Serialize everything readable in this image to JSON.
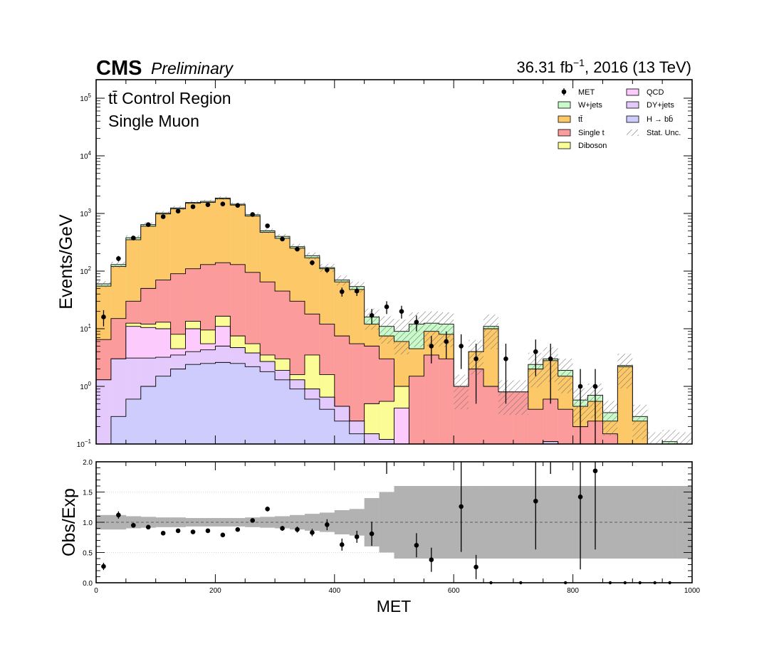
{
  "header": {
    "cms": "CMS",
    "preliminary": "Preliminary",
    "lumi_value": "36.31 fb",
    "lumi_exp": "−1",
    "lumi_rest": ", 2016 (13 TeV)"
  },
  "region": {
    "line1": "tt̄ Control Region",
    "line2": "Single Muon"
  },
  "axes": {
    "top_ylabel": "Events/GeV",
    "bottom_ylabel": "Obs/Exp",
    "xlabel": "MET",
    "x_ticks": [
      "0",
      "200",
      "400",
      "600",
      "800",
      "1000"
    ],
    "top_y_ticks": [
      {
        "base": "10",
        "exp": "−1"
      },
      {
        "base": "10",
        "exp": "0"
      },
      {
        "base": "10",
        "exp": "1"
      },
      {
        "base": "10",
        "exp": "2"
      },
      {
        "base": "10",
        "exp": "3"
      },
      {
        "base": "10",
        "exp": "4"
      },
      {
        "base": "10",
        "exp": "5"
      }
    ],
    "ratio_y_ticks": [
      "0.0",
      "0.5",
      "1.0",
      "1.5",
      "2.0"
    ]
  },
  "legend": {
    "met": "MET",
    "wjets": "W+jets",
    "ttbar": "tt̄",
    "singlet": "Single t",
    "diboson": "Diboson",
    "qcd": "QCD",
    "dyjets": "DY+jets",
    "hbb": "H → bb̄",
    "stat": "Stat. Unc."
  },
  "colors": {
    "hbb": "#cdccfd",
    "dyjets": "#e4cafc",
    "qcd": "#fccafd",
    "diboson": "#fcfc97",
    "singlet": "#fc9b9b",
    "ttbar": "#fdc867",
    "wjets": "#c9fbca",
    "stat_band": "#b2b2b2"
  },
  "chart_data": {
    "type": "histogram-stack-with-ratio",
    "xlim": [
      0,
      1000
    ],
    "ylim": [
      0.1,
      200000
    ],
    "ylog": true,
    "ratio_ylim": [
      0,
      2
    ],
    "bin_width": 25,
    "bin_low_edges": [
      0,
      25,
      50,
      75,
      100,
      125,
      150,
      175,
      200,
      225,
      250,
      275,
      300,
      325,
      350,
      375,
      400,
      425,
      450,
      475,
      500,
      525,
      550,
      575,
      600,
      625,
      650,
      675,
      700,
      725,
      750,
      775,
      800,
      825,
      850,
      875,
      900,
      925,
      950,
      975
    ],
    "stack_cumulative": {
      "hbb": [
        0.1,
        0.3,
        0.6,
        1.0,
        1.5,
        2.0,
        2.4,
        2.5,
        2.6,
        2.5,
        2.2,
        1.8,
        1.3,
        0.9,
        0.6,
        0.4,
        0.25,
        0.15,
        0.1,
        0.1,
        0.1,
        0.1,
        0.1,
        0.1,
        0.1,
        0.1,
        0.1,
        0.1,
        0.1,
        0.1,
        0.1,
        0.1,
        0.1,
        0.1,
        0.1,
        0.1,
        0.1,
        0.1,
        0.1,
        0.1
      ],
      "dyjets": [
        1.3,
        3.0,
        3.1,
        3.1,
        3.2,
        3.5,
        4.0,
        4.3,
        5.0,
        4.7,
        3.8,
        2.7,
        1.9,
        1.3,
        0.9,
        0.65,
        0.45,
        0.25,
        0.15,
        0.12,
        0.1,
        0.1,
        0.1,
        0.1,
        0.1,
        0.1,
        0.1,
        0.1,
        0.1,
        0.1,
        0.11,
        0.1,
        0.1,
        0.1,
        0.1,
        0.1,
        0.1,
        0.1,
        0.1,
        0.1
      ],
      "qcd": [
        1.3,
        3.0,
        11.0,
        10.5,
        10.0,
        4.5,
        10.0,
        5.5,
        11.0,
        4.7,
        3.8,
        2.7,
        1.9,
        1.3,
        0.9,
        0.65,
        0.45,
        0.25,
        0.15,
        0.12,
        0.42,
        0.1,
        0.1,
        0.1,
        0.1,
        0.1,
        0.1,
        0.1,
        0.1,
        0.1,
        0.11,
        0.1,
        0.1,
        0.1,
        0.1,
        0.1,
        0.1,
        0.1,
        0.1,
        0.1
      ],
      "diboson": [
        1.3,
        3.0,
        12.5,
        12.0,
        13.0,
        8.0,
        13.5,
        9.5,
        16.5,
        7.5,
        5.5,
        3.5,
        3.0,
        1.6,
        3.5,
        1.6,
        0.45,
        0.25,
        0.5,
        0.55,
        1.0,
        0.1,
        0.1,
        0.1,
        0.1,
        0.1,
        0.1,
        0.1,
        0.1,
        0.1,
        0.11,
        0.1,
        0.1,
        0.1,
        0.1,
        0.1,
        0.1,
        0.1,
        0.1,
        0.1
      ],
      "singlet": [
        6.5,
        15,
        30,
        50,
        70,
        90,
        110,
        130,
        140,
        130,
        95,
        65,
        45,
        30,
        18,
        12,
        7.5,
        5.5,
        5.0,
        3.0,
        1.0,
        1.5,
        3.5,
        3.0,
        1.0,
        2.0,
        1.0,
        0.8,
        0.8,
        0.4,
        0.6,
        0.4,
        0.2,
        0.25,
        0.15,
        0.1,
        0.1,
        0.1,
        0.1,
        0.1
      ],
      "ttbar": [
        55,
        120,
        350,
        600,
        980,
        1200,
        1500,
        1550,
        1800,
        1400,
        900,
        470,
        370,
        250,
        170,
        110,
        65,
        48,
        12,
        7.5,
        6.0,
        4.5,
        9.0,
        8.0,
        1.0,
        4.0,
        10.0,
        0.8,
        0.8,
        2.0,
        2.8,
        1.5,
        0.45,
        0.55,
        0.25,
        2.2,
        0.25,
        0.1,
        0.1,
        0.1
      ],
      "wjets": [
        60,
        130,
        380,
        640,
        1020,
        1250,
        1550,
        1620,
        1850,
        1450,
        950,
        500,
        400,
        265,
        185,
        115,
        70,
        54,
        16,
        11,
        9.0,
        12,
        12.5,
        12,
        1.0,
        4.0,
        11.0,
        0.8,
        0.8,
        2.4,
        3.0,
        1.9,
        0.58,
        0.7,
        0.35,
        2.3,
        0.3,
        0.1,
        0.11,
        0.1
      ]
    },
    "stat_unc_rel": [
      0.12,
      0.12,
      0.1,
      0.09,
      0.08,
      0.08,
      0.07,
      0.07,
      0.07,
      0.07,
      0.08,
      0.09,
      0.1,
      0.12,
      0.14,
      0.16,
      0.2,
      0.22,
      0.4,
      0.5,
      0.6,
      0.6,
      0.6,
      0.6,
      0.6,
      0.6,
      0.6,
      0.6,
      0.6,
      0.6,
      0.6,
      0.6,
      0.6,
      0.6,
      0.6,
      0.6,
      0.6,
      0.6,
      0.6,
      0.6
    ],
    "data_points": [
      {
        "x": 12.5,
        "y": 16,
        "err": 5
      },
      {
        "x": 37.5,
        "y": 165,
        "err": 18
      },
      {
        "x": 62.5,
        "y": 375,
        "err": 25
      },
      {
        "x": 87.5,
        "y": 640,
        "err": 30
      },
      {
        "x": 112.5,
        "y": 880,
        "err": 35
      },
      {
        "x": 137.5,
        "y": 1100,
        "err": 40
      },
      {
        "x": 162.5,
        "y": 1310,
        "err": 45
      },
      {
        "x": 187.5,
        "y": 1420,
        "err": 45
      },
      {
        "x": 212.5,
        "y": 1460,
        "err": 45
      },
      {
        "x": 237.5,
        "y": 1380,
        "err": 45
      },
      {
        "x": 262.5,
        "y": 960,
        "err": 35
      },
      {
        "x": 287.5,
        "y": 610,
        "err": 30
      },
      {
        "x": 312.5,
        "y": 360,
        "err": 22
      },
      {
        "x": 337.5,
        "y": 240,
        "err": 18
      },
      {
        "x": 362.5,
        "y": 140,
        "err": 14
      },
      {
        "x": 387.5,
        "y": 105,
        "err": 12
      },
      {
        "x": 412.5,
        "y": 44,
        "err": 8
      },
      {
        "x": 437.5,
        "y": 45,
        "err": 8
      },
      {
        "x": 462.5,
        "y": 17,
        "err": 5
      },
      {
        "x": 487.5,
        "y": 24,
        "err": 6
      },
      {
        "x": 512.5,
        "y": 20,
        "err": 5
      },
      {
        "x": 537.5,
        "y": 13,
        "err": 4
      },
      {
        "x": 562.5,
        "y": 5,
        "err": 2.5
      },
      {
        "x": 587.5,
        "y": 6,
        "err": 3
      },
      {
        "x": 612.5,
        "y": 5,
        "err": 3
      },
      {
        "x": 637.5,
        "y": 3,
        "err": 2.5
      },
      {
        "x": 687.5,
        "y": 3,
        "err": 2.5
      },
      {
        "x": 737.5,
        "y": 4,
        "err": 2.5
      },
      {
        "x": 762.5,
        "y": 3,
        "err": 2.5
      },
      {
        "x": 812.5,
        "y": 1,
        "err": 1.0
      },
      {
        "x": 837.5,
        "y": 1,
        "err": 1.0
      }
    ],
    "ratio_points": [
      {
        "x": 12.5,
        "y": 0.27,
        "err": 0.06
      },
      {
        "x": 37.5,
        "y": 1.12,
        "err": 0.06
      },
      {
        "x": 62.5,
        "y": 0.95,
        "err": 0.04
      },
      {
        "x": 87.5,
        "y": 0.92,
        "err": 0.03
      },
      {
        "x": 112.5,
        "y": 0.82,
        "err": 0.02
      },
      {
        "x": 137.5,
        "y": 0.86,
        "err": 0.02
      },
      {
        "x": 162.5,
        "y": 0.84,
        "err": 0.02
      },
      {
        "x": 187.5,
        "y": 0.86,
        "err": 0.02
      },
      {
        "x": 212.5,
        "y": 0.79,
        "err": 0.02
      },
      {
        "x": 237.5,
        "y": 0.88,
        "err": 0.02
      },
      {
        "x": 262.5,
        "y": 1.03,
        "err": 0.03
      },
      {
        "x": 287.5,
        "y": 1.22,
        "err": 0.04
      },
      {
        "x": 312.5,
        "y": 0.9,
        "err": 0.04
      },
      {
        "x": 337.5,
        "y": 0.88,
        "err": 0.05
      },
      {
        "x": 362.5,
        "y": 0.83,
        "err": 0.06
      },
      {
        "x": 387.5,
        "y": 0.96,
        "err": 0.09
      },
      {
        "x": 412.5,
        "y": 0.63,
        "err": 0.1
      },
      {
        "x": 437.5,
        "y": 0.76,
        "err": 0.1
      },
      {
        "x": 462.5,
        "y": 0.81,
        "err": 0.2
      },
      {
        "x": 487.5,
        "y": 2.4,
        "err": 0.6
      },
      {
        "x": 537.5,
        "y": 0.62,
        "err": 0.2
      },
      {
        "x": 562.5,
        "y": 0.38,
        "err": 0.2
      },
      {
        "x": 612.5,
        "y": 1.26,
        "err": 0.75
      },
      {
        "x": 637.5,
        "y": 0.26,
        "err": 0.2
      },
      {
        "x": 737.5,
        "y": 1.35,
        "err": 0.8
      },
      {
        "x": 762.5,
        "y": 2.8,
        "err": 1.0
      },
      {
        "x": 812.5,
        "y": 1.42,
        "err": 1.2
      },
      {
        "x": 837.5,
        "y": 1.85,
        "err": 1.3
      }
    ],
    "ratio_zero_x": [
      662.5,
      712.5,
      787.5,
      862.5,
      887.5,
      912.5,
      937.5,
      962.5
    ]
  }
}
